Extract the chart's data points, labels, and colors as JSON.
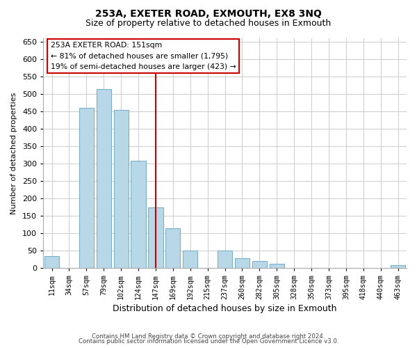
{
  "title": "253A, EXETER ROAD, EXMOUTH, EX8 3NQ",
  "subtitle": "Size of property relative to detached houses in Exmouth",
  "xlabel": "Distribution of detached houses by size in Exmouth",
  "ylabel": "Number of detached properties",
  "footer_lines": [
    "Contains HM Land Registry data © Crown copyright and database right 2024.",
    "Contains public sector information licensed under the Open Government Licence v3.0."
  ],
  "bins": [
    "11sqm",
    "34sqm",
    "57sqm",
    "79sqm",
    "102sqm",
    "124sqm",
    "147sqm",
    "169sqm",
    "192sqm",
    "215sqm",
    "237sqm",
    "260sqm",
    "282sqm",
    "305sqm",
    "328sqm",
    "350sqm",
    "373sqm",
    "395sqm",
    "418sqm",
    "440sqm",
    "463sqm"
  ],
  "values": [
    35,
    0,
    460,
    515,
    455,
    308,
    175,
    115,
    50,
    0,
    50,
    29,
    20,
    13,
    0,
    0,
    0,
    0,
    0,
    0,
    8
  ],
  "bar_color": "#b8d8e8",
  "bar_edge_color": "#7aafc8",
  "vline_x_index": 6,
  "vline_color": "#cc0000",
  "ann_line1": "253A EXETER ROAD: 151sqm",
  "ann_line2": "← 81% of detached houses are smaller (1,795)",
  "ann_line3": "19% of semi-detached houses are larger (423) →",
  "ylim": [
    0,
    660
  ],
  "yticks": [
    0,
    50,
    100,
    150,
    200,
    250,
    300,
    350,
    400,
    450,
    500,
    550,
    600,
    650
  ],
  "background_color": "#ffffff",
  "grid_color": "#cccccc",
  "title_fontsize": 10,
  "subtitle_fontsize": 9,
  "xlabel_fontsize": 9,
  "ylabel_fontsize": 8
}
